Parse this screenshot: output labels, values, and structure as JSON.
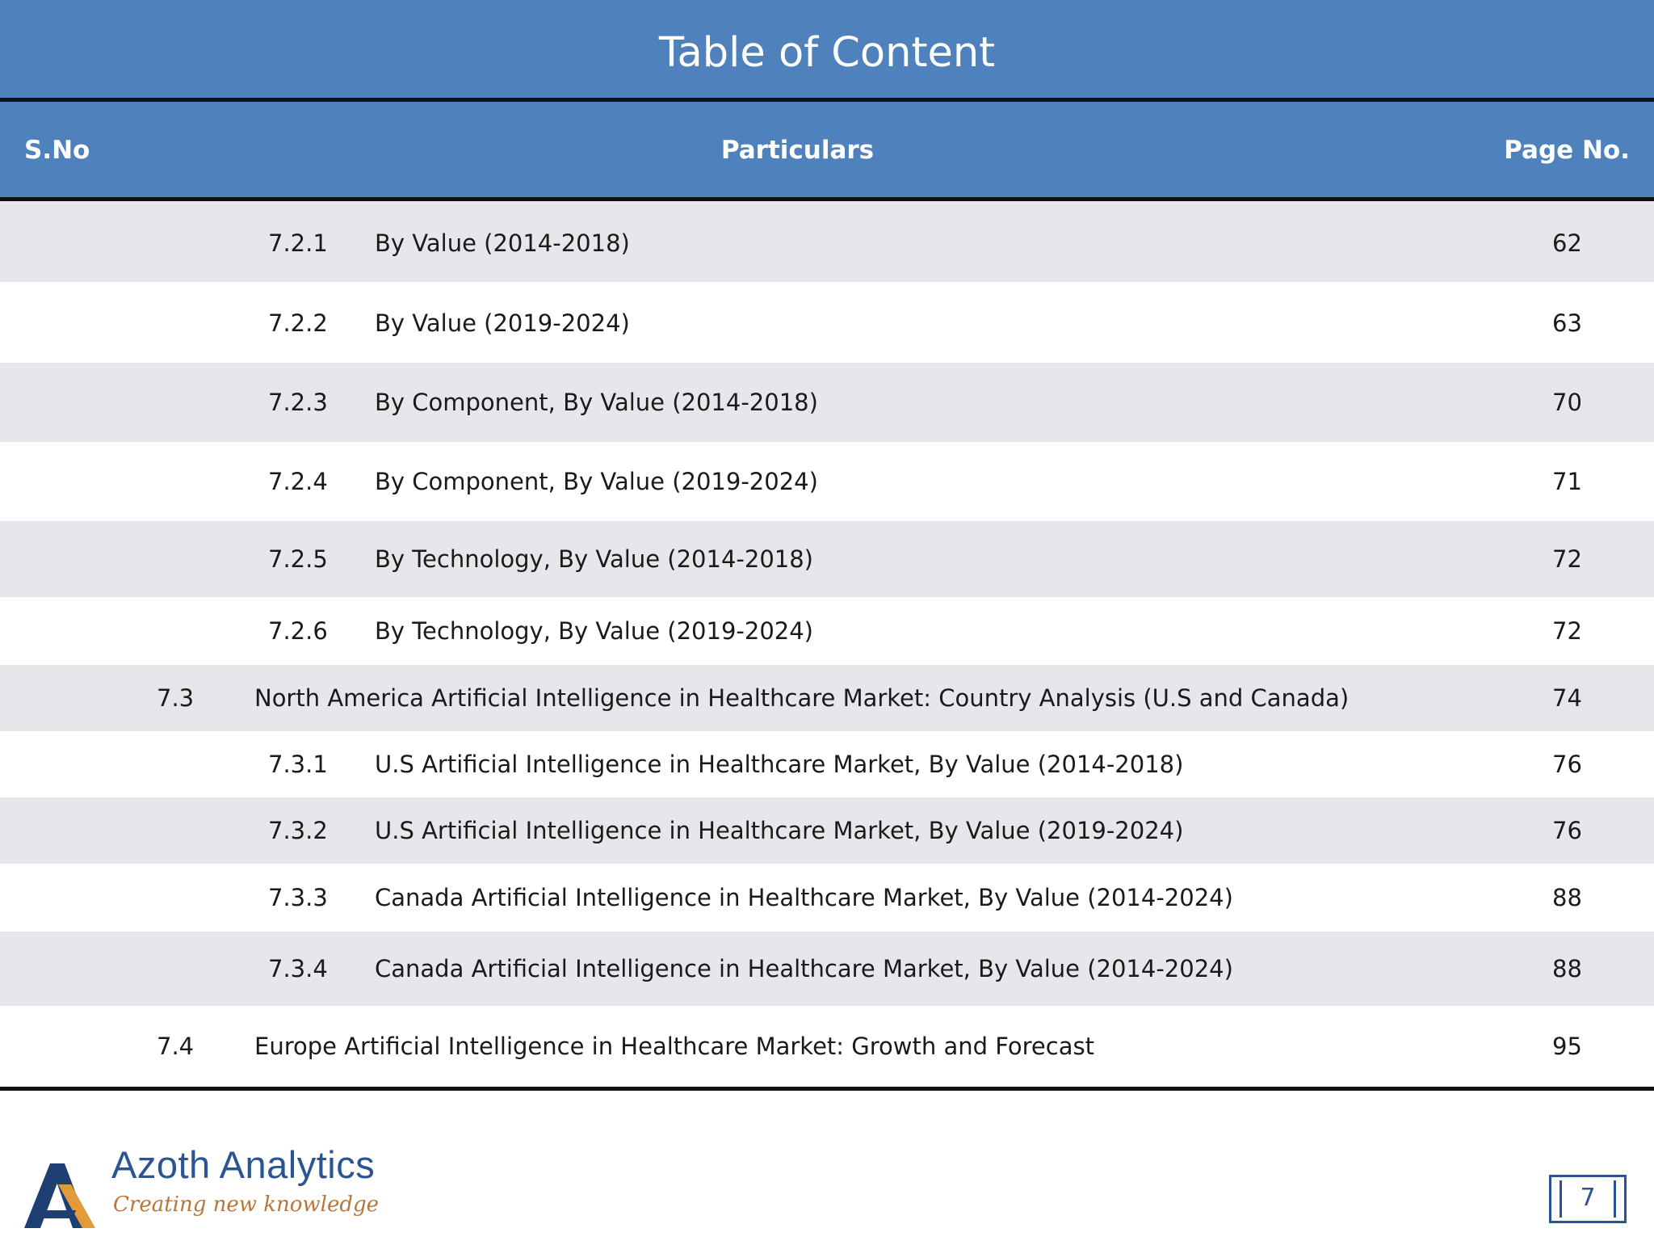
{
  "title": "Table of Content",
  "columns": {
    "sno": "S.No",
    "particulars": "Particulars",
    "page": "Page No."
  },
  "rows": [
    {
      "level": "sub",
      "sno": "7.2.1",
      "text": "By Value (2014-2018)",
      "page": "62"
    },
    {
      "level": "sub",
      "sno": "7.2.2",
      "text": "By Value (2019-2024)",
      "page": "63"
    },
    {
      "level": "sub",
      "sno": "7.2.3",
      "text": "By Component, By Value (2014-2018)",
      "page": "70"
    },
    {
      "level": "sub",
      "sno": "7.2.4",
      "text": "By Component, By Value (2019-2024)",
      "page": "71"
    },
    {
      "level": "sub",
      "sno": "7.2.5",
      "text": "By Technology, By Value (2014-2018)",
      "page": "72"
    },
    {
      "level": "sub",
      "sno": "7.2.6",
      "text": "By Technology, By Value (2019-2024)",
      "page": "72"
    },
    {
      "level": "main",
      "sno": "7.3",
      "text": "North America Artificial Intelligence in Healthcare Market: Country Analysis (U.S and Canada)",
      "page": "74"
    },
    {
      "level": "sub",
      "sno": "7.3.1",
      "text": "U.S Artificial Intelligence in Healthcare Market, By Value (2014-2018)",
      "page": "76"
    },
    {
      "level": "sub",
      "sno": "7.3.2",
      "text": "U.S Artificial Intelligence in Healthcare Market, By Value (2019-2024)",
      "page": "76"
    },
    {
      "level": "sub",
      "sno": "7.3.3",
      "text": "Canada Artificial Intelligence in Healthcare Market, By Value (2014-2024)",
      "page": "88"
    },
    {
      "level": "sub",
      "sno": "7.3.4",
      "text": "Canada Artificial Intelligence in Healthcare Market, By Value (2014-2024)",
      "page": "88"
    },
    {
      "level": "main",
      "sno": "7.4",
      "text": "Europe Artificial Intelligence in Healthcare Market: Growth and Forecast",
      "page": "95"
    }
  ],
  "footer": {
    "brand": "Azoth Analytics",
    "tagline": "Creating new knowledge",
    "page_number": "7",
    "colors": {
      "brand_blue": "#2a5592",
      "brand_orange": "#b8763a",
      "header_blue": "#4f81bd"
    }
  }
}
